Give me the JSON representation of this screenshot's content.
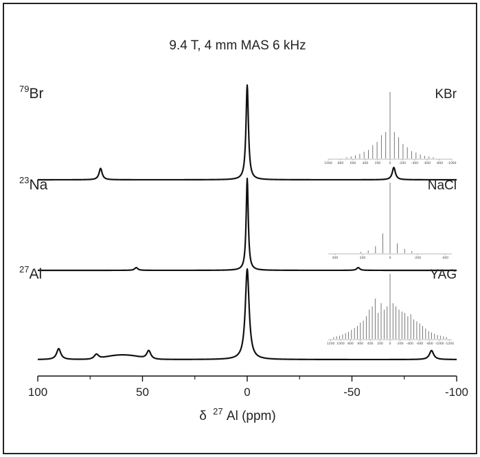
{
  "chart_data": {
    "type": "line",
    "title": "9.4 T, 4 mm MAS 6 kHz",
    "xlabel": {
      "symbol": "δ",
      "mass": "27",
      "rest": "Al (ppm)"
    },
    "x_ticks": [
      100,
      50,
      0,
      -50,
      -100
    ],
    "x_tick_labels": [
      "100",
      "50",
      "0",
      "-50",
      "-100"
    ],
    "xlim": [
      100,
      -100
    ],
    "series": [
      {
        "nucleus_mass": "79",
        "nucleus": "Br",
        "sample": "KBr",
        "peaks": [
          {
            "x": 0,
            "h": 1.0,
            "w": 0.7
          },
          {
            "x": 70,
            "h": 0.12,
            "w": 0.9
          },
          {
            "x": -70,
            "h": 0.13,
            "w": 0.9
          }
        ],
        "inset": {
          "tick_labels": [
            "1000",
            "800",
            "600",
            "400",
            "200",
            "0",
            "-200",
            "-400",
            "-600",
            "-800",
            "-1000"
          ],
          "range": [
            1000,
            -1000
          ],
          "sticks": [
            {
              "x": 0,
              "h": 1.0
            },
            {
              "x": 70,
              "h": 0.4
            },
            {
              "x": -70,
              "h": 0.4
            },
            {
              "x": 140,
              "h": 0.35
            },
            {
              "x": -140,
              "h": 0.32
            },
            {
              "x": 210,
              "h": 0.25
            },
            {
              "x": -210,
              "h": 0.22
            },
            {
              "x": 280,
              "h": 0.2
            },
            {
              "x": -280,
              "h": 0.17
            },
            {
              "x": 350,
              "h": 0.13
            },
            {
              "x": -350,
              "h": 0.11
            },
            {
              "x": 420,
              "h": 0.1
            },
            {
              "x": -420,
              "h": 0.09
            },
            {
              "x": 490,
              "h": 0.07
            },
            {
              "x": -490,
              "h": 0.06
            },
            {
              "x": 560,
              "h": 0.05
            },
            {
              "x": -560,
              "h": 0.04
            },
            {
              "x": 630,
              "h": 0.03
            },
            {
              "x": -630,
              "h": 0.03
            },
            {
              "x": 700,
              "h": 0.02
            },
            {
              "x": -700,
              "h": 0.02
            }
          ]
        }
      },
      {
        "nucleus_mass": "23",
        "nucleus": "Na",
        "sample": "NaCl",
        "peaks": [
          {
            "x": 0,
            "h": 1.0,
            "w": 0.6
          },
          {
            "x": 53,
            "h": 0.03,
            "w": 0.9
          },
          {
            "x": -53,
            "h": 0.03,
            "w": 0.9
          }
        ],
        "inset": {
          "tick_labels": [
            "400",
            "200",
            "0",
            "-200",
            "-400"
          ],
          "range": [
            450,
            -450
          ],
          "sticks": [
            {
              "x": 0,
              "h": 1.0
            },
            {
              "x": 53,
              "h": 0.28
            },
            {
              "x": -53,
              "h": 0.14
            },
            {
              "x": 106,
              "h": 0.1
            },
            {
              "x": -106,
              "h": 0.06
            },
            {
              "x": 159,
              "h": 0.04
            },
            {
              "x": -159,
              "h": 0.03
            },
            {
              "x": 212,
              "h": 0.02
            }
          ]
        }
      },
      {
        "nucleus_mass": "27",
        "nucleus": "Al",
        "sample": "YAG",
        "peaks": [
          {
            "x": 0,
            "h": 1.0,
            "w": 1.1
          },
          {
            "x": 90,
            "h": 0.12,
            "w": 1.2
          },
          {
            "x": 72,
            "h": 0.06,
            "w": 1.3
          },
          {
            "x": 47,
            "h": 0.1,
            "w": 1.2
          },
          {
            "x": -88,
            "h": 0.1,
            "w": 1.2
          }
        ],
        "hump": {
          "from": 72,
          "to": 47,
          "h": 0.05
        },
        "inset": {
          "tick_labels": [
            "1200",
            "1000",
            "800",
            "600",
            "400",
            "200",
            "0",
            "-200",
            "-400",
            "-600",
            "-800",
            "-1000",
            "-1200"
          ],
          "range": [
            1250,
            -1250
          ],
          "sticks": [
            {
              "x": 0,
              "h": 1.0
            },
            {
              "x": 60,
              "h": 0.5
            },
            {
              "x": -60,
              "h": 0.55
            },
            {
              "x": 120,
              "h": 0.45
            },
            {
              "x": -120,
              "h": 0.5
            },
            {
              "x": 180,
              "h": 0.55
            },
            {
              "x": -180,
              "h": 0.45
            },
            {
              "x": 240,
              "h": 0.4
            },
            {
              "x": -240,
              "h": 0.42
            },
            {
              "x": 300,
              "h": 0.62
            },
            {
              "x": -300,
              "h": 0.4
            },
            {
              "x": 360,
              "h": 0.5
            },
            {
              "x": -360,
              "h": 0.35
            },
            {
              "x": 420,
              "h": 0.45
            },
            {
              "x": -420,
              "h": 0.38
            },
            {
              "x": 480,
              "h": 0.35
            },
            {
              "x": -480,
              "h": 0.3
            },
            {
              "x": 540,
              "h": 0.28
            },
            {
              "x": -540,
              "h": 0.27
            },
            {
              "x": 600,
              "h": 0.25
            },
            {
              "x": -600,
              "h": 0.24
            },
            {
              "x": 660,
              "h": 0.2
            },
            {
              "x": -660,
              "h": 0.2
            },
            {
              "x": 720,
              "h": 0.17
            },
            {
              "x": -720,
              "h": 0.16
            },
            {
              "x": 780,
              "h": 0.14
            },
            {
              "x": -780,
              "h": 0.12
            },
            {
              "x": 840,
              "h": 0.11
            },
            {
              "x": -840,
              "h": 0.1
            },
            {
              "x": 900,
              "h": 0.09
            },
            {
              "x": -900,
              "h": 0.08
            },
            {
              "x": 960,
              "h": 0.07
            },
            {
              "x": -960,
              "h": 0.06
            },
            {
              "x": 1020,
              "h": 0.05
            },
            {
              "x": -1020,
              "h": 0.05
            },
            {
              "x": 1080,
              "h": 0.04
            },
            {
              "x": -1080,
              "h": 0.04
            },
            {
              "x": 1140,
              "h": 0.03
            },
            {
              "x": -1140,
              "h": 0.03
            }
          ]
        }
      }
    ]
  }
}
